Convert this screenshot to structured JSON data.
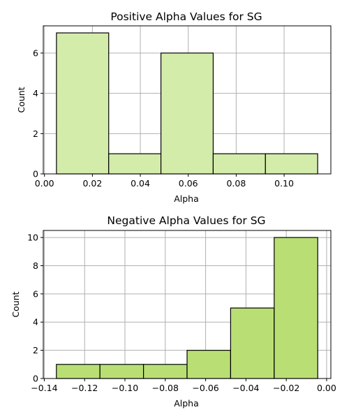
{
  "chart_data": [
    {
      "type": "histogram",
      "title": "Positive Alpha Values for SG",
      "xlabel": "Alpha",
      "ylabel": "Count",
      "bin_edges": [
        0.005,
        0.0268,
        0.0486,
        0.0704,
        0.0922,
        0.114
      ],
      "counts": [
        7,
        1,
        6,
        1,
        1
      ],
      "xlim": [
        -0.0005,
        0.1195
      ],
      "ylim": [
        0,
        7.35
      ],
      "xticks": [
        0.0,
        0.02,
        0.04,
        0.06,
        0.08,
        0.1
      ],
      "xtick_labels": [
        "0.00",
        "0.02",
        "0.04",
        "0.06",
        "0.08",
        "0.10"
      ],
      "yticks": [
        0,
        2,
        4,
        6
      ],
      "ytick_labels": [
        "0",
        "2",
        "4",
        "6"
      ],
      "grid": true,
      "bar_color": "#d4ecaa",
      "edge_color": "#000000"
    },
    {
      "type": "histogram",
      "title": "Negative Alpha Values for SG",
      "xlabel": "Alpha",
      "ylabel": "Count",
      "bin_edges": [
        -0.134,
        -0.1124,
        -0.0908,
        -0.0692,
        -0.0476,
        -0.026,
        -0.0044
      ],
      "counts": [
        1,
        1,
        1,
        2,
        5,
        10
      ],
      "xlim": [
        -0.1405,
        0.0021
      ],
      "ylim": [
        0,
        10.5
      ],
      "xticks": [
        -0.14,
        -0.12,
        -0.1,
        -0.08,
        -0.06,
        -0.04,
        -0.02,
        0.0
      ],
      "xtick_labels": [
        "−0.14",
        "−0.12",
        "−0.10",
        "−0.08",
        "−0.06",
        "−0.04",
        "−0.02",
        "0.00"
      ],
      "yticks": [
        0,
        2,
        4,
        6,
        8,
        10
      ],
      "ytick_labels": [
        "0",
        "2",
        "4",
        "6",
        "8",
        "10"
      ],
      "grid": true,
      "bar_color": "#b9df74",
      "edge_color": "#000000"
    }
  ]
}
